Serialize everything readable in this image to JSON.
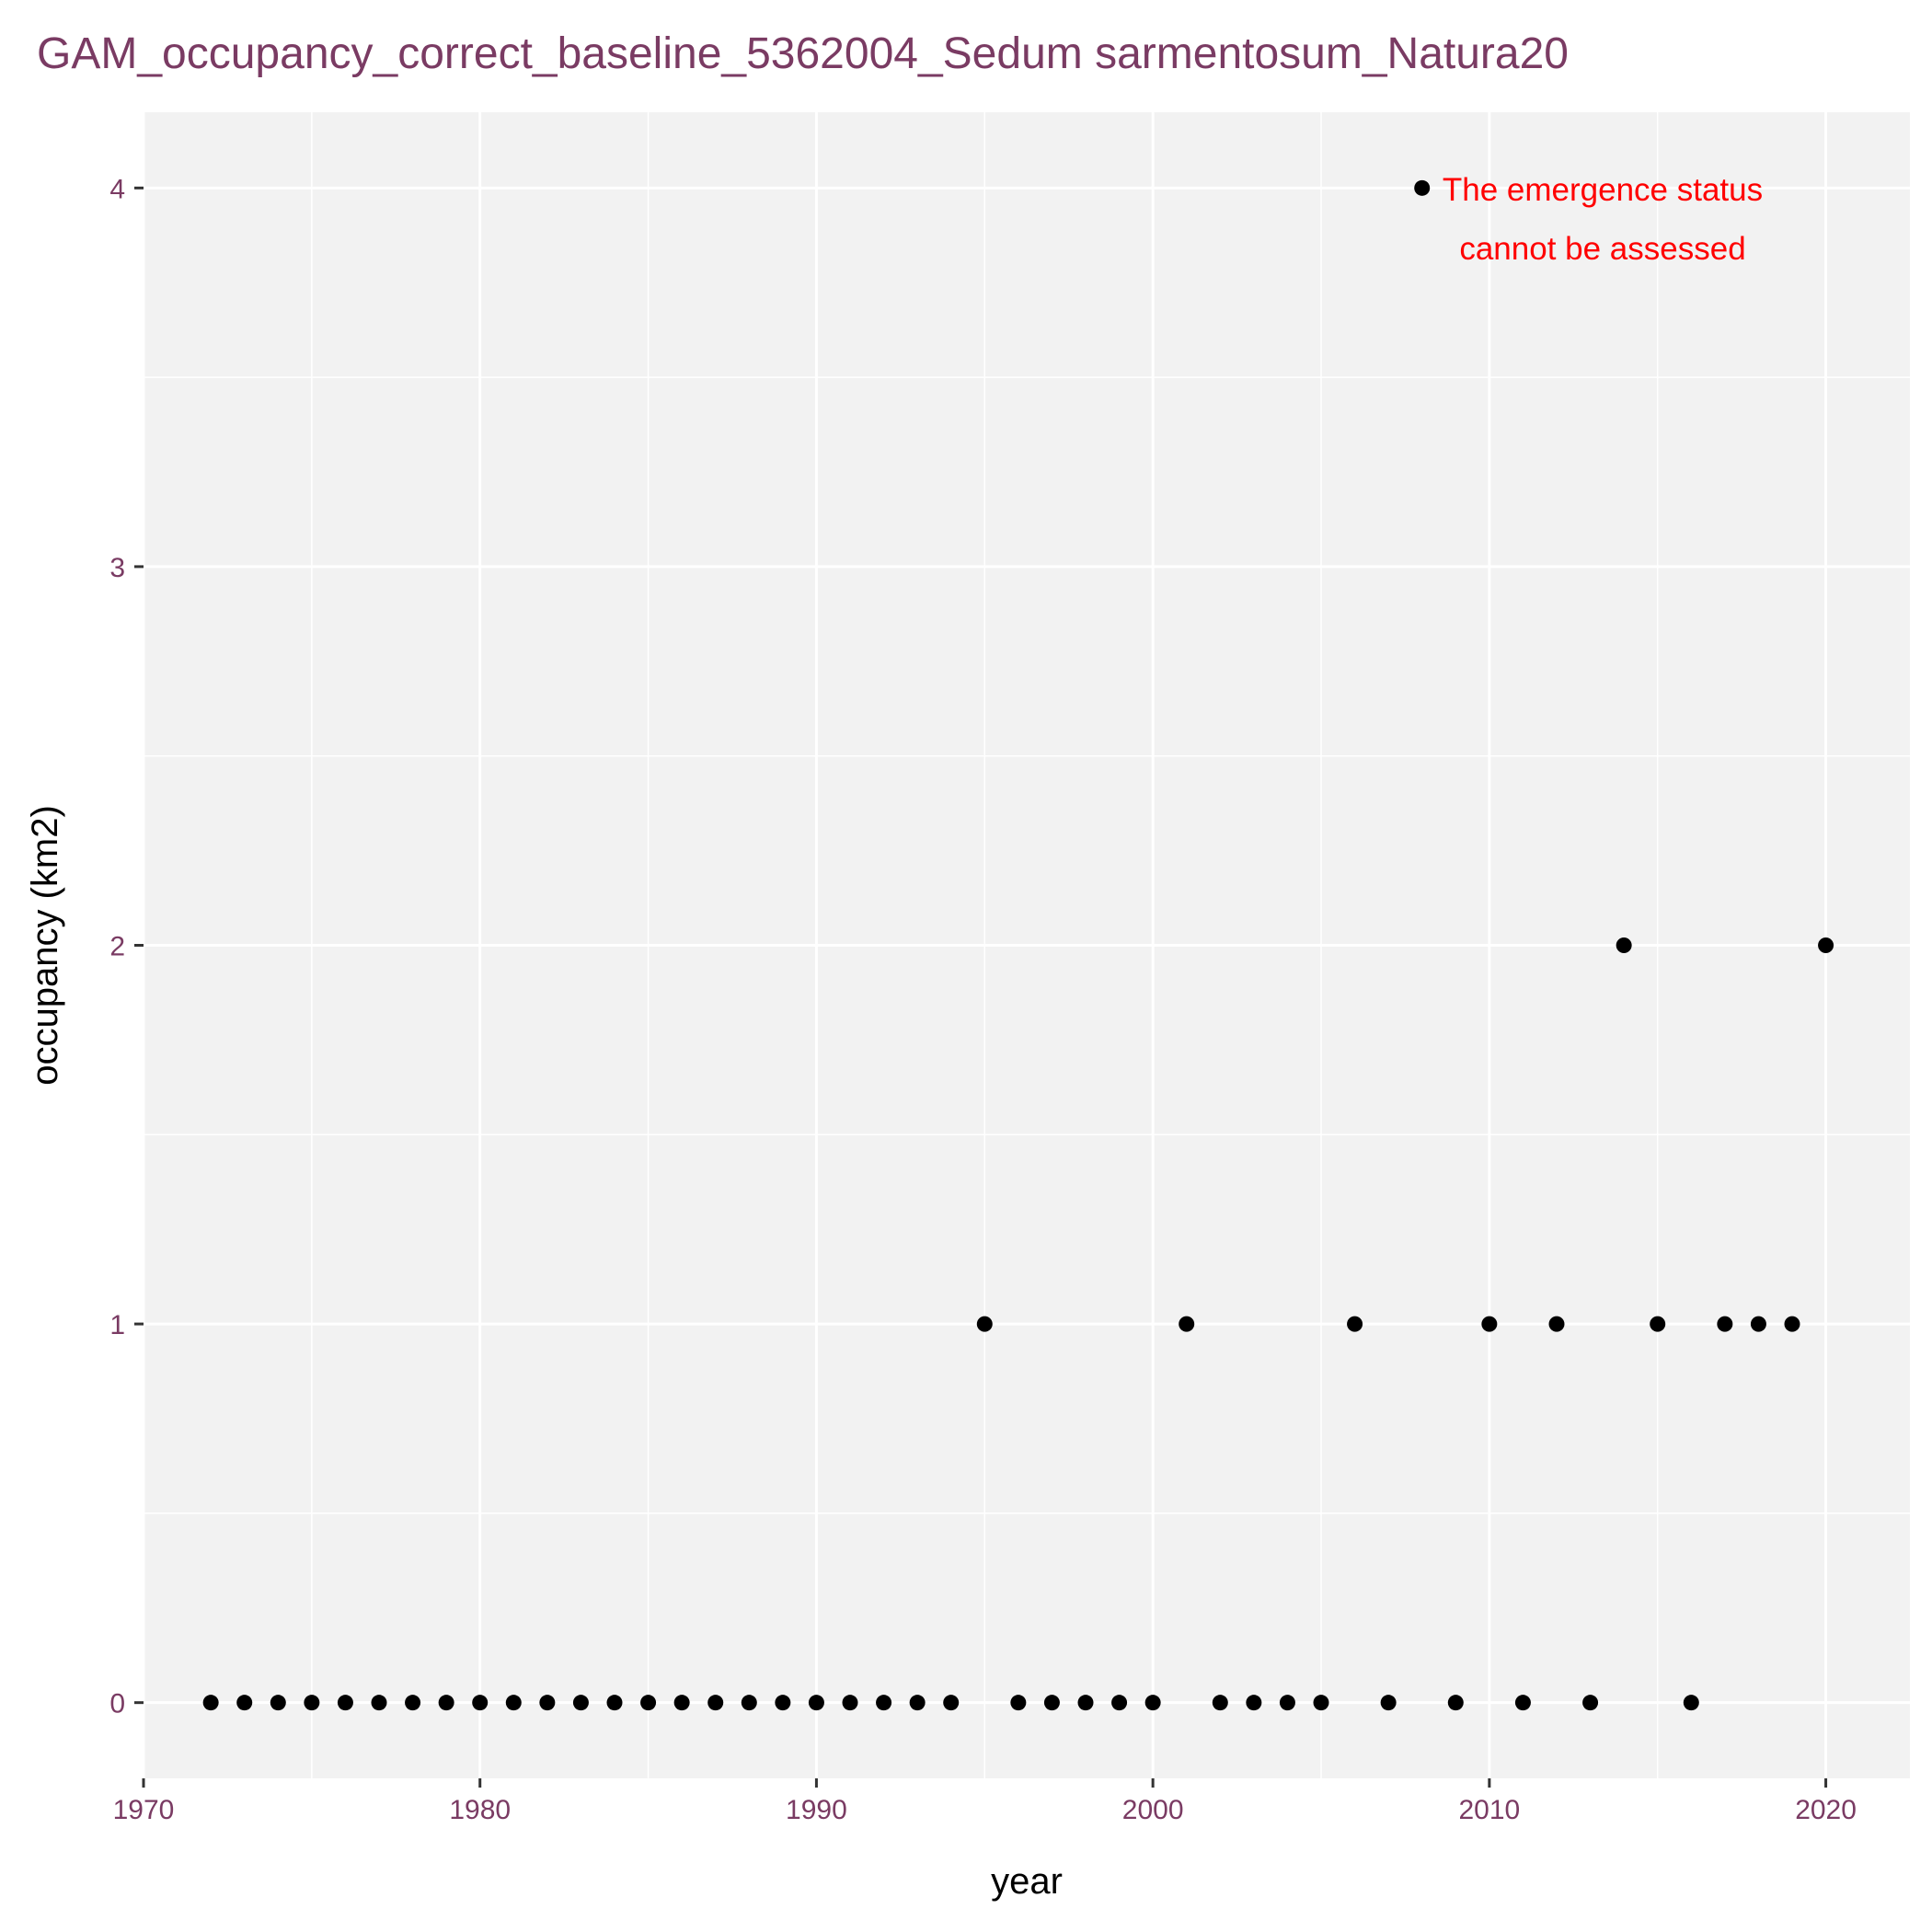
{
  "colors": {
    "panel_background": "#f2f2f2",
    "grid_major": "#ffffff",
    "grid_minor": "#ffffff",
    "title": "#7a3b63",
    "tick_labels": "#7a3b63",
    "points": "#000000",
    "annotation": "#ff0000",
    "axis_title": "#000000"
  },
  "chart_data": {
    "type": "scatter",
    "title": "GAM_occupancy_correct_baseline_5362004_Sedum sarmentosum_Natura20",
    "xlabel": "year",
    "ylabel": "occupancy (km2)",
    "xlim": [
      1970,
      2022.5
    ],
    "ylim": [
      -0.2,
      4.2
    ],
    "x_ticks": [
      1970,
      1980,
      1990,
      2000,
      2010,
      2020
    ],
    "y_ticks": [
      0,
      1,
      2,
      3,
      4
    ],
    "grid": true,
    "legend": "none",
    "annotation": [
      "The emergence status",
      "cannot be assessed"
    ],
    "points": [
      {
        "x": 1972,
        "y": 0
      },
      {
        "x": 1973,
        "y": 0
      },
      {
        "x": 1974,
        "y": 0
      },
      {
        "x": 1975,
        "y": 0
      },
      {
        "x": 1976,
        "y": 0
      },
      {
        "x": 1977,
        "y": 0
      },
      {
        "x": 1978,
        "y": 0
      },
      {
        "x": 1979,
        "y": 0
      },
      {
        "x": 1980,
        "y": 0
      },
      {
        "x": 1981,
        "y": 0
      },
      {
        "x": 1982,
        "y": 0
      },
      {
        "x": 1983,
        "y": 0
      },
      {
        "x": 1984,
        "y": 0
      },
      {
        "x": 1985,
        "y": 0
      },
      {
        "x": 1986,
        "y": 0
      },
      {
        "x": 1987,
        "y": 0
      },
      {
        "x": 1988,
        "y": 0
      },
      {
        "x": 1989,
        "y": 0
      },
      {
        "x": 1990,
        "y": 0
      },
      {
        "x": 1991,
        "y": 0
      },
      {
        "x": 1992,
        "y": 0
      },
      {
        "x": 1993,
        "y": 0
      },
      {
        "x": 1994,
        "y": 0
      },
      {
        "x": 1995,
        "y": 1
      },
      {
        "x": 1996,
        "y": 0
      },
      {
        "x": 1997,
        "y": 0
      },
      {
        "x": 1998,
        "y": 0
      },
      {
        "x": 1999,
        "y": 0
      },
      {
        "x": 2000,
        "y": 0
      },
      {
        "x": 2001,
        "y": 1
      },
      {
        "x": 2002,
        "y": 0
      },
      {
        "x": 2003,
        "y": 0
      },
      {
        "x": 2004,
        "y": 0
      },
      {
        "x": 2005,
        "y": 0
      },
      {
        "x": 2006,
        "y": 1
      },
      {
        "x": 2007,
        "y": 0
      },
      {
        "x": 2008,
        "y": 4
      },
      {
        "x": 2009,
        "y": 0
      },
      {
        "x": 2010,
        "y": 1
      },
      {
        "x": 2011,
        "y": 0
      },
      {
        "x": 2012,
        "y": 1
      },
      {
        "x": 2013,
        "y": 0
      },
      {
        "x": 2014,
        "y": 2
      },
      {
        "x": 2015,
        "y": 1
      },
      {
        "x": 2016,
        "y": 0
      },
      {
        "x": 2017,
        "y": 1
      },
      {
        "x": 2018,
        "y": 1
      },
      {
        "x": 2019,
        "y": 1
      },
      {
        "x": 2020,
        "y": 2
      }
    ]
  }
}
